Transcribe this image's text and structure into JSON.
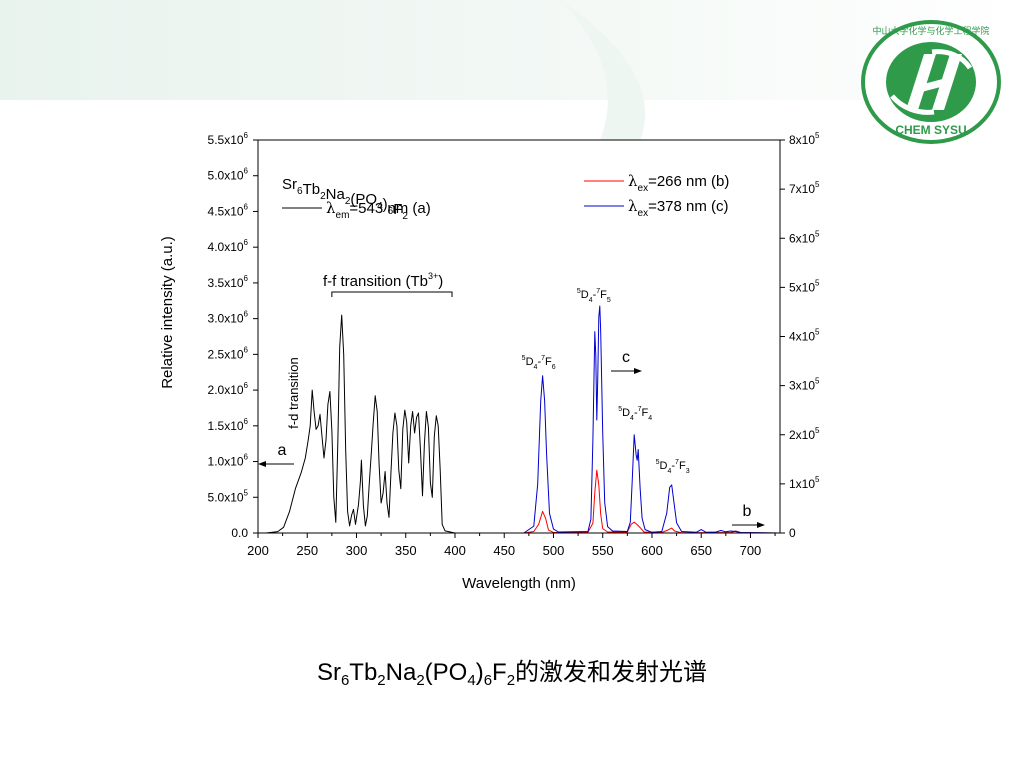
{
  "slide": {
    "caption_formula": {
      "parts": [
        {
          "t": "Sr",
          "sub": "6"
        },
        {
          "t": "Tb",
          "sub": "2"
        },
        {
          "t": "Na",
          "sub": "2"
        },
        {
          "t": "(PO",
          "sub": "4"
        },
        {
          "t": ")",
          "sub": "6"
        },
        {
          "t": "F",
          "sub": "2"
        }
      ]
    },
    "caption_suffix": "的激发和发射光谱",
    "logo": {
      "lettering": "中山大学化学与化学工程学院 CHEM SYSU",
      "accent": "#2e9a4a"
    }
  },
  "chart_data": {
    "type": "line",
    "xlabel": "Wavelength (nm)",
    "ylabel": "Relative intensity (a.u.)",
    "xlim": [
      200,
      730
    ],
    "ylim_left": [
      0,
      5500000.0
    ],
    "ylim_right": [
      0,
      800000.0
    ],
    "x_ticks": [
      "200",
      "250",
      "300",
      "350",
      "400",
      "450",
      "500",
      "550",
      "600",
      "650",
      "700"
    ],
    "y_left_ticks": [
      {
        "v": 0,
        "m": "0.0",
        "e": ""
      },
      {
        "v": 500000,
        "m": "5.0x10",
        "e": "5"
      },
      {
        "v": 1000000,
        "m": "1.0x10",
        "e": "6"
      },
      {
        "v": 1500000,
        "m": "1.5x10",
        "e": "6"
      },
      {
        "v": 2000000,
        "m": "2.0x10",
        "e": "6"
      },
      {
        "v": 2500000,
        "m": "2.5x10",
        "e": "6"
      },
      {
        "v": 3000000,
        "m": "3.0x10",
        "e": "6"
      },
      {
        "v": 3500000,
        "m": "3.5x10",
        "e": "6"
      },
      {
        "v": 4000000,
        "m": "4.0x10",
        "e": "6"
      },
      {
        "v": 4500000,
        "m": "4.5x10",
        "e": "6"
      },
      {
        "v": 5000000,
        "m": "5.0x10",
        "e": "6"
      },
      {
        "v": 5500000,
        "m": "5.5x10",
        "e": "6"
      }
    ],
    "y_right_ticks": [
      {
        "v": 0,
        "m": "0",
        "e": ""
      },
      {
        "v": 100000,
        "m": "1x10",
        "e": "5"
      },
      {
        "v": 200000,
        "m": "2x10",
        "e": "5"
      },
      {
        "v": 300000,
        "m": "3x10",
        "e": "5"
      },
      {
        "v": 400000,
        "m": "4x10",
        "e": "5"
      },
      {
        "v": 500000,
        "m": "5x10",
        "e": "5"
      },
      {
        "v": 600000,
        "m": "6x10",
        "e": "5"
      },
      {
        "v": 700000,
        "m": "7x10",
        "e": "5"
      },
      {
        "v": 800000,
        "m": "8x10",
        "e": "5"
      }
    ],
    "legend_compound": [
      {
        "t": "Sr",
        "sub": "6"
      },
      {
        "t": "Tb",
        "sub": "2"
      },
      {
        "t": "Na",
        "sub": "2"
      },
      {
        "t": "(PO",
        "sub": "4"
      },
      {
        "t": ")",
        "sub": "6"
      },
      {
        "t": "F",
        "sub": "2"
      }
    ],
    "series": [
      {
        "name": "a",
        "legend_sub": "em",
        "legend_rest": "=543 nm (a)",
        "axis": "left",
        "color": "#000000",
        "points": [
          [
            208,
            0
          ],
          [
            220,
            20000
          ],
          [
            226,
            80000
          ],
          [
            232,
            300000
          ],
          [
            238,
            620000
          ],
          [
            244,
            850000
          ],
          [
            248,
            1050000
          ],
          [
            251,
            1300000
          ],
          [
            253,
            1500000
          ],
          [
            255,
            2000000
          ],
          [
            257,
            1700000
          ],
          [
            259,
            1450000
          ],
          [
            261,
            1500000
          ],
          [
            263,
            1660000
          ],
          [
            265,
            1350000
          ],
          [
            267,
            1050000
          ],
          [
            269,
            1300000
          ],
          [
            271,
            1800000
          ],
          [
            273,
            1980000
          ],
          [
            275,
            1420000
          ],
          [
            277,
            500000
          ],
          [
            279,
            150000
          ],
          [
            281,
            1250000
          ],
          [
            283,
            2600000
          ],
          [
            285,
            3050000
          ],
          [
            287,
            2500000
          ],
          [
            289,
            1150000
          ],
          [
            291,
            300000
          ],
          [
            293,
            100000
          ],
          [
            295,
            250000
          ],
          [
            297,
            330000
          ],
          [
            299,
            120000
          ],
          [
            302,
            400000
          ],
          [
            304,
            720000
          ],
          [
            305,
            1020000
          ],
          [
            307,
            380000
          ],
          [
            309,
            100000
          ],
          [
            311,
            240000
          ],
          [
            313,
            700000
          ],
          [
            315,
            1120000
          ],
          [
            317,
            1540000
          ],
          [
            319,
            1920000
          ],
          [
            321,
            1700000
          ],
          [
            323,
            960000
          ],
          [
            325,
            420000
          ],
          [
            327,
            560000
          ],
          [
            329,
            860000
          ],
          [
            331,
            420000
          ],
          [
            333,
            220000
          ],
          [
            335,
            860000
          ],
          [
            337,
            1400000
          ],
          [
            339,
            1680000
          ],
          [
            341,
            1500000
          ],
          [
            343,
            880000
          ],
          [
            345,
            620000
          ],
          [
            347,
            1450000
          ],
          [
            349,
            1720000
          ],
          [
            351,
            1550000
          ],
          [
            353,
            980000
          ],
          [
            355,
            1500000
          ],
          [
            357,
            1700000
          ],
          [
            359,
            1400000
          ],
          [
            361,
            1620000
          ],
          [
            363,
            1680000
          ],
          [
            365,
            1150000
          ],
          [
            367,
            520000
          ],
          [
            369,
            1250000
          ],
          [
            371,
            1700000
          ],
          [
            373,
            1480000
          ],
          [
            375,
            700000
          ],
          [
            377,
            500000
          ],
          [
            379,
            1350000
          ],
          [
            381,
            1640000
          ],
          [
            383,
            1500000
          ],
          [
            385,
            880000
          ],
          [
            387,
            120000
          ],
          [
            390,
            30000
          ],
          [
            400,
            0
          ]
        ]
      },
      {
        "name": "b",
        "legend_sub": "ex",
        "legend_rest": "=266 nm (b)",
        "axis": "right",
        "color": "#ff0000",
        "points": [
          [
            400,
            0
          ],
          [
            470,
            0
          ],
          [
            480,
            3000
          ],
          [
            485,
            18000
          ],
          [
            489,
            44000
          ],
          [
            492,
            30000
          ],
          [
            495,
            6000
          ],
          [
            500,
            1000
          ],
          [
            535,
            1500
          ],
          [
            540,
            20000
          ],
          [
            542,
            82000
          ],
          [
            544,
            128000
          ],
          [
            546,
            98000
          ],
          [
            548,
            38000
          ],
          [
            550,
            9000
          ],
          [
            555,
            2000
          ],
          [
            575,
            2000
          ],
          [
            579,
            18000
          ],
          [
            582,
            22000
          ],
          [
            585,
            17000
          ],
          [
            588,
            11000
          ],
          [
            592,
            2000
          ],
          [
            610,
            1000
          ],
          [
            616,
            6000
          ],
          [
            620,
            10000
          ],
          [
            623,
            4000
          ],
          [
            630,
            500
          ],
          [
            680,
            1000
          ],
          [
            685,
            4000
          ],
          [
            690,
            800
          ],
          [
            730,
            0
          ]
        ]
      },
      {
        "name": "c",
        "legend_sub": "ex",
        "legend_rest": "=378 nm (c)",
        "axis": "right",
        "color": "#0000cc",
        "points": [
          [
            400,
            0
          ],
          [
            470,
            0
          ],
          [
            480,
            14000
          ],
          [
            484,
            100000
          ],
          [
            487,
            268000
          ],
          [
            489,
            320000
          ],
          [
            491,
            270000
          ],
          [
            493,
            160000
          ],
          [
            496,
            40000
          ],
          [
            500,
            8000
          ],
          [
            505,
            2000
          ],
          [
            535,
            3000
          ],
          [
            538,
            28000
          ],
          [
            540,
            190000
          ],
          [
            542,
            410000
          ],
          [
            543,
            360000
          ],
          [
            544,
            230000
          ],
          [
            545,
            320000
          ],
          [
            546,
            440000
          ],
          [
            547,
            462000
          ],
          [
            548,
            410000
          ],
          [
            550,
            205000
          ],
          [
            552,
            62000
          ],
          [
            555,
            13000
          ],
          [
            560,
            4000
          ],
          [
            575,
            3000
          ],
          [
            578,
            22000
          ],
          [
            580,
            110000
          ],
          [
            582,
            200000
          ],
          [
            584,
            158000
          ],
          [
            585,
            148000
          ],
          [
            586,
            170000
          ],
          [
            588,
            92000
          ],
          [
            590,
            30000
          ],
          [
            593,
            7000
          ],
          [
            600,
            1500
          ],
          [
            610,
            3000
          ],
          [
            615,
            40000
          ],
          [
            618,
            93000
          ],
          [
            620,
            98000
          ],
          [
            622,
            68000
          ],
          [
            625,
            21000
          ],
          [
            630,
            3000
          ],
          [
            645,
            1500
          ],
          [
            650,
            7000
          ],
          [
            655,
            1500
          ],
          [
            665,
            2000
          ],
          [
            670,
            5000
          ],
          [
            675,
            2500
          ],
          [
            680,
            4000
          ],
          [
            685,
            3000
          ],
          [
            690,
            1000
          ],
          [
            700,
            800
          ],
          [
            730,
            0
          ]
        ]
      }
    ],
    "annotations": {
      "fd_transition": "f-d transition",
      "ff_transition": {
        "main": "f-f transition (Tb",
        "sup": "3+",
        "close": ")"
      },
      "label_a": "a",
      "label_b": "b",
      "label_c": "c",
      "transitions": [
        {
          "name": "transition-f6",
          "xv": 487,
          "y": 365,
          "text": [
            "5",
            "D",
            "4",
            "-",
            "7",
            "F",
            "6"
          ]
        },
        {
          "name": "transition-f5",
          "xv": 543,
          "y": 298,
          "text": [
            "5",
            "D",
            "4",
            "-",
            "7",
            "F",
            "5"
          ]
        },
        {
          "name": "transition-f4",
          "xv": 585,
          "y": 416,
          "text": [
            "5",
            "D",
            "4",
            "-",
            "7",
            "F",
            "4"
          ]
        },
        {
          "name": "transition-f3",
          "xv": 623,
          "y": 469,
          "text": [
            "5",
            "D",
            "4",
            "-",
            "7",
            "F",
            "3"
          ]
        }
      ]
    }
  }
}
